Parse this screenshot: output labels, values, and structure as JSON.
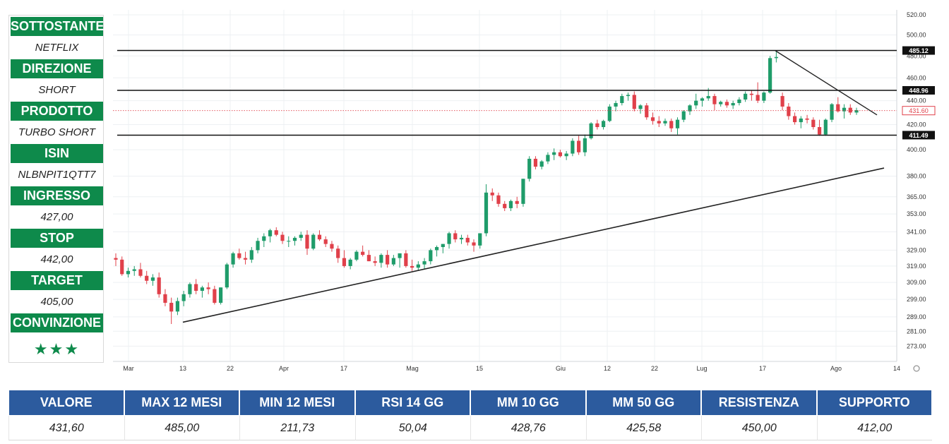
{
  "panel": {
    "items": [
      {
        "label": "SOTTOSTANTE",
        "value": "NETFLIX"
      },
      {
        "label": "DIREZIONE",
        "value": "SHORT"
      },
      {
        "label": "PRODOTTO",
        "value": "TURBO SHORT"
      },
      {
        "label": "ISIN",
        "value": "NLBNPIT1QTT7"
      },
      {
        "label": "INGRESSO",
        "value": "427,00"
      },
      {
        "label": "STOP",
        "value": "442,00"
      },
      {
        "label": "TARGET",
        "value": "405,00"
      },
      {
        "label": "CONVINZIONE",
        "value": "★★★"
      }
    ]
  },
  "table": {
    "headers": [
      "VALORE",
      "MAX 12 MESI",
      "MIN 12 MESI",
      "RSI 14 GG",
      "MM 10 GG",
      "MM 50 GG",
      "RESISTENZA",
      "SUPPORTO"
    ],
    "values": [
      "431,60",
      "485,00",
      "211,73",
      "50,04",
      "428,76",
      "425,58",
      "450,00",
      "412,00"
    ]
  },
  "colors": {
    "green": "#0e8a4b",
    "blue": "#2c5b9e",
    "candle_up": "#1f9c6a",
    "candle_down": "#e0404a"
  },
  "chart_data": {
    "type": "candlestick",
    "y_scale": "log",
    "ylim": [
      265,
      525
    ],
    "y_ticks": [
      {
        "value": 520,
        "label": "520.00"
      },
      {
        "value": 500,
        "label": "500.00"
      },
      {
        "value": 480,
        "label": "480.00"
      },
      {
        "value": 460,
        "label": "460.00"
      },
      {
        "value": 440,
        "label": "440.00"
      },
      {
        "value": 420,
        "label": "420.00"
      },
      {
        "value": 400,
        "label": "400.00"
      },
      {
        "value": 380,
        "label": "380.00"
      },
      {
        "value": 365,
        "label": "365.00"
      },
      {
        "value": 353,
        "label": "353.00"
      },
      {
        "value": 341,
        "label": "341.00"
      },
      {
        "value": 329,
        "label": "329.00"
      },
      {
        "value": 319,
        "label": "319.00"
      },
      {
        "value": 309,
        "label": "309.00"
      },
      {
        "value": 299,
        "label": "299.00"
      },
      {
        "value": 289,
        "label": "289.00"
      },
      {
        "value": 281,
        "label": "281.00"
      },
      {
        "value": 273,
        "label": "273.00"
      }
    ],
    "x_ticks": [
      "Mar",
      "13",
      "22",
      "Apr",
      "17",
      "Mag",
      "15",
      "Giu",
      "12",
      "22",
      "Lug",
      "17",
      "Ago",
      "14"
    ],
    "horizontal_levels": [
      {
        "value": 485.12,
        "label": "485.12"
      },
      {
        "value": 448.96,
        "label": "448.96"
      },
      {
        "value": 411.49,
        "label": "411.49"
      }
    ],
    "last_price": {
      "value": 431.6,
      "label": "431.60"
    },
    "trendlines": [
      {
        "from": [
          "13",
          286
        ],
        "to": [
          "14",
          386
        ]
      },
      {
        "from": [
          "17",
          485
        ],
        "to": [
          "Ago",
          428
        ]
      }
    ],
    "candles": [
      {
        "o": 324,
        "h": 327,
        "l": 319,
        "c": 323
      },
      {
        "o": 323,
        "h": 325,
        "l": 313,
        "c": 314
      },
      {
        "o": 314,
        "h": 318,
        "l": 312,
        "c": 316
      },
      {
        "o": 316,
        "h": 319,
        "l": 313,
        "c": 317
      },
      {
        "o": 317,
        "h": 321,
        "l": 312,
        "c": 313
      },
      {
        "o": 313,
        "h": 316,
        "l": 308,
        "c": 310
      },
      {
        "o": 310,
        "h": 314,
        "l": 307,
        "c": 312
      },
      {
        "o": 312,
        "h": 315,
        "l": 300,
        "c": 302
      },
      {
        "o": 302,
        "h": 305,
        "l": 295,
        "c": 297
      },
      {
        "o": 297,
        "h": 300,
        "l": 285,
        "c": 292
      },
      {
        "o": 292,
        "h": 300,
        "l": 290,
        "c": 298
      },
      {
        "o": 298,
        "h": 304,
        "l": 295,
        "c": 302
      },
      {
        "o": 302,
        "h": 309,
        "l": 300,
        "c": 308
      },
      {
        "o": 308,
        "h": 311,
        "l": 302,
        "c": 304
      },
      {
        "o": 304,
        "h": 307,
        "l": 300,
        "c": 306
      },
      {
        "o": 306,
        "h": 309,
        "l": 302,
        "c": 305
      },
      {
        "o": 305,
        "h": 307,
        "l": 296,
        "c": 297
      },
      {
        "o": 297,
        "h": 306,
        "l": 296,
        "c": 306
      },
      {
        "o": 306,
        "h": 321,
        "l": 305,
        "c": 320
      },
      {
        "o": 320,
        "h": 328,
        "l": 318,
        "c": 327
      },
      {
        "o": 327,
        "h": 330,
        "l": 323,
        "c": 324
      },
      {
        "o": 324,
        "h": 328,
        "l": 320,
        "c": 323
      },
      {
        "o": 323,
        "h": 331,
        "l": 321,
        "c": 329
      },
      {
        "o": 329,
        "h": 337,
        "l": 327,
        "c": 335
      },
      {
        "o": 335,
        "h": 340,
        "l": 331,
        "c": 338
      },
      {
        "o": 338,
        "h": 343,
        "l": 334,
        "c": 342
      },
      {
        "o": 342,
        "h": 344,
        "l": 338,
        "c": 339
      },
      {
        "o": 339,
        "h": 341,
        "l": 333,
        "c": 335
      },
      {
        "o": 335,
        "h": 338,
        "l": 331,
        "c": 335
      },
      {
        "o": 335,
        "h": 338,
        "l": 332,
        "c": 337
      },
      {
        "o": 337,
        "h": 341,
        "l": 335,
        "c": 339
      },
      {
        "o": 339,
        "h": 342,
        "l": 326,
        "c": 330
      },
      {
        "o": 330,
        "h": 340,
        "l": 329,
        "c": 339
      },
      {
        "o": 339,
        "h": 342,
        "l": 335,
        "c": 336
      },
      {
        "o": 336,
        "h": 338,
        "l": 331,
        "c": 333
      },
      {
        "o": 333,
        "h": 335,
        "l": 328,
        "c": 330
      },
      {
        "o": 330,
        "h": 332,
        "l": 321,
        "c": 324
      },
      {
        "o": 324,
        "h": 329,
        "l": 318,
        "c": 319
      },
      {
        "o": 319,
        "h": 324,
        "l": 317,
        "c": 323
      },
      {
        "o": 323,
        "h": 329,
        "l": 322,
        "c": 328
      },
      {
        "o": 328,
        "h": 332,
        "l": 325,
        "c": 326
      },
      {
        "o": 326,
        "h": 329,
        "l": 322,
        "c": 322
      },
      {
        "o": 322,
        "h": 325,
        "l": 319,
        "c": 321
      },
      {
        "o": 321,
        "h": 327,
        "l": 318,
        "c": 326
      },
      {
        "o": 326,
        "h": 329,
        "l": 318,
        "c": 320
      },
      {
        "o": 320,
        "h": 326,
        "l": 319,
        "c": 324
      },
      {
        "o": 324,
        "h": 326,
        "l": 318,
        "c": 327
      },
      {
        "o": 327,
        "h": 329,
        "l": 318,
        "c": 319
      },
      {
        "o": 319,
        "h": 323,
        "l": 316,
        "c": 318
      },
      {
        "o": 318,
        "h": 322,
        "l": 316,
        "c": 320
      },
      {
        "o": 320,
        "h": 324,
        "l": 317,
        "c": 322
      },
      {
        "o": 322,
        "h": 330,
        "l": 320,
        "c": 329
      },
      {
        "o": 329,
        "h": 332,
        "l": 325,
        "c": 331
      },
      {
        "o": 331,
        "h": 333,
        "l": 327,
        "c": 333
      },
      {
        "o": 333,
        "h": 341,
        "l": 330,
        "c": 340
      },
      {
        "o": 340,
        "h": 342,
        "l": 334,
        "c": 336
      },
      {
        "o": 336,
        "h": 339,
        "l": 333,
        "c": 337
      },
      {
        "o": 337,
        "h": 339,
        "l": 332,
        "c": 334
      },
      {
        "o": 334,
        "h": 336,
        "l": 328,
        "c": 332
      },
      {
        "o": 332,
        "h": 340,
        "l": 330,
        "c": 340
      },
      {
        "o": 340,
        "h": 374,
        "l": 338,
        "c": 368
      },
      {
        "o": 368,
        "h": 371,
        "l": 362,
        "c": 366
      },
      {
        "o": 366,
        "h": 368,
        "l": 358,
        "c": 360
      },
      {
        "o": 360,
        "h": 362,
        "l": 355,
        "c": 357
      },
      {
        "o": 357,
        "h": 363,
        "l": 355,
        "c": 362
      },
      {
        "o": 362,
        "h": 365,
        "l": 357,
        "c": 360
      },
      {
        "o": 360,
        "h": 378,
        "l": 358,
        "c": 378
      },
      {
        "o": 378,
        "h": 395,
        "l": 376,
        "c": 393
      },
      {
        "o": 393,
        "h": 395,
        "l": 385,
        "c": 387
      },
      {
        "o": 387,
        "h": 392,
        "l": 385,
        "c": 391
      },
      {
        "o": 391,
        "h": 398,
        "l": 389,
        "c": 396
      },
      {
        "o": 396,
        "h": 401,
        "l": 392,
        "c": 398
      },
      {
        "o": 398,
        "h": 400,
        "l": 394,
        "c": 395
      },
      {
        "o": 395,
        "h": 399,
        "l": 392,
        "c": 397
      },
      {
        "o": 397,
        "h": 409,
        "l": 395,
        "c": 407
      },
      {
        "o": 407,
        "h": 411,
        "l": 396,
        "c": 398
      },
      {
        "o": 398,
        "h": 412,
        "l": 395,
        "c": 409
      },
      {
        "o": 409,
        "h": 422,
        "l": 408,
        "c": 421
      },
      {
        "o": 421,
        "h": 424,
        "l": 416,
        "c": 418
      },
      {
        "o": 418,
        "h": 424,
        "l": 416,
        "c": 423
      },
      {
        "o": 423,
        "h": 437,
        "l": 422,
        "c": 435
      },
      {
        "o": 435,
        "h": 440,
        "l": 431,
        "c": 438
      },
      {
        "o": 438,
        "h": 446,
        "l": 436,
        "c": 444
      },
      {
        "o": 444,
        "h": 447,
        "l": 440,
        "c": 445
      },
      {
        "o": 445,
        "h": 448,
        "l": 431,
        "c": 433
      },
      {
        "o": 433,
        "h": 437,
        "l": 429,
        "c": 436
      },
      {
        "o": 436,
        "h": 438,
        "l": 424,
        "c": 426
      },
      {
        "o": 426,
        "h": 430,
        "l": 420,
        "c": 423
      },
      {
        "o": 423,
        "h": 427,
        "l": 418,
        "c": 421
      },
      {
        "o": 421,
        "h": 425,
        "l": 419,
        "c": 423
      },
      {
        "o": 423,
        "h": 425,
        "l": 414,
        "c": 417
      },
      {
        "o": 417,
        "h": 426,
        "l": 412,
        "c": 424
      },
      {
        "o": 424,
        "h": 432,
        "l": 422,
        "c": 431
      },
      {
        "o": 431,
        "h": 437,
        "l": 428,
        "c": 436
      },
      {
        "o": 436,
        "h": 446,
        "l": 433,
        "c": 440
      },
      {
        "o": 440,
        "h": 443,
        "l": 435,
        "c": 442
      },
      {
        "o": 442,
        "h": 451,
        "l": 440,
        "c": 444
      },
      {
        "o": 444,
        "h": 446,
        "l": 432,
        "c": 437
      },
      {
        "o": 437,
        "h": 440,
        "l": 435,
        "c": 439
      },
      {
        "o": 439,
        "h": 441,
        "l": 434,
        "c": 436
      },
      {
        "o": 436,
        "h": 440,
        "l": 433,
        "c": 438
      },
      {
        "o": 438,
        "h": 443,
        "l": 436,
        "c": 441
      },
      {
        "o": 441,
        "h": 448,
        "l": 439,
        "c": 446
      },
      {
        "o": 446,
        "h": 449,
        "l": 440,
        "c": 445
      },
      {
        "o": 445,
        "h": 456,
        "l": 438,
        "c": 440
      },
      {
        "o": 440,
        "h": 448,
        "l": 438,
        "c": 447
      },
      {
        "o": 447,
        "h": 480,
        "l": 446,
        "c": 478
      },
      {
        "o": 478,
        "h": 485,
        "l": 474,
        "c": 479
      },
      {
        "o": 444,
        "h": 447,
        "l": 432,
        "c": 435
      },
      {
        "o": 435,
        "h": 438,
        "l": 424,
        "c": 427
      },
      {
        "o": 427,
        "h": 430,
        "l": 420,
        "c": 422
      },
      {
        "o": 422,
        "h": 427,
        "l": 417,
        "c": 425
      },
      {
        "o": 425,
        "h": 428,
        "l": 421,
        "c": 424
      },
      {
        "o": 424,
        "h": 426,
        "l": 416,
        "c": 418
      },
      {
        "o": 418,
        "h": 424,
        "l": 411,
        "c": 412
      },
      {
        "o": 412,
        "h": 425,
        "l": 411,
        "c": 424
      },
      {
        "o": 424,
        "h": 438,
        "l": 422,
        "c": 437
      },
      {
        "o": 437,
        "h": 443,
        "l": 430,
        "c": 431
      },
      {
        "o": 431,
        "h": 437,
        "l": 425,
        "c": 434
      },
      {
        "o": 434,
        "h": 437,
        "l": 428,
        "c": 430
      },
      {
        "o": 430,
        "h": 434,
        "l": 428,
        "c": 432
      }
    ]
  }
}
